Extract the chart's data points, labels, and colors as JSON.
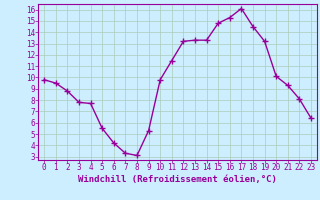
{
  "x": [
    0,
    1,
    2,
    3,
    4,
    5,
    6,
    7,
    8,
    9,
    10,
    11,
    12,
    13,
    14,
    15,
    16,
    17,
    18,
    19,
    20,
    21,
    22,
    23
  ],
  "y": [
    9.8,
    9.5,
    8.8,
    7.8,
    7.7,
    5.5,
    4.2,
    3.3,
    3.1,
    5.3,
    9.8,
    11.5,
    13.2,
    13.3,
    13.3,
    14.8,
    15.3,
    16.1,
    14.5,
    13.2,
    10.1,
    9.3,
    8.1,
    6.4
  ],
  "line_color": "#990099",
  "marker": "+",
  "marker_size": 5,
  "line_width": 1.0,
  "xlabel": "Windchill (Refroidissement éolien,°C)",
  "xlabel_fontsize": 6.5,
  "bg_color": "#cceeff",
  "grid_color": "#aaccbb",
  "tick_color": "#990099",
  "label_color": "#990099",
  "ylim": [
    2.7,
    16.5
  ],
  "xlim": [
    -0.5,
    23.5
  ],
  "yticks": [
    3,
    4,
    5,
    6,
    7,
    8,
    9,
    10,
    11,
    12,
    13,
    14,
    15,
    16
  ],
  "xticks": [
    0,
    1,
    2,
    3,
    4,
    5,
    6,
    7,
    8,
    9,
    10,
    11,
    12,
    13,
    14,
    15,
    16,
    17,
    18,
    19,
    20,
    21,
    22,
    23
  ],
  "tick_labelsize": 5.5
}
